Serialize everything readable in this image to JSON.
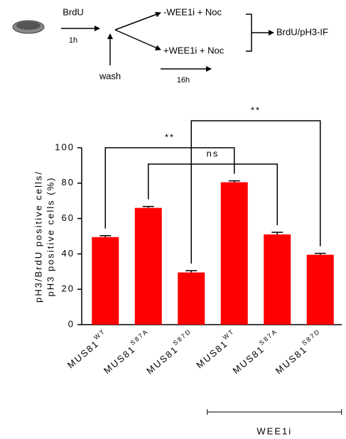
{
  "diagram": {
    "pulse": "BrdU",
    "pulse_time": "1h",
    "wash": "wash",
    "branch_minus": "-WEE1i + Noc",
    "branch_plus": "+WEE1i + Noc",
    "readout": "BrdU/pH3-IF",
    "chase_time": "16h"
  },
  "chart_data": {
    "type": "bar",
    "ylabel": [
      "pH3/BrdU positive cells/",
      "pH3 positive cells (%)"
    ],
    "categories": [
      {
        "name": "MUS81",
        "sup": "WT"
      },
      {
        "name": "MUS81",
        "sup": "S87A"
      },
      {
        "name": "MUS81",
        "sup": "S87D"
      },
      {
        "name": "MUS81",
        "sup": "WT"
      },
      {
        "name": "MUS81",
        "sup": "S87A"
      },
      {
        "name": "MUS81",
        "sup": "S87D"
      }
    ],
    "values": [
      49.5,
      66,
      29.5,
      80.5,
      51,
      39.5
    ],
    "errors": [
      0.8,
      0.8,
      1,
      0.8,
      1.2,
      0.8
    ],
    "color": "#ff0000",
    "ylim": [
      0,
      100
    ],
    "yticks": [
      0,
      20,
      40,
      60,
      80,
      100
    ],
    "annotations": [
      {
        "from": 0,
        "to": 3,
        "label": "**"
      },
      {
        "from": 1,
        "to": 4,
        "label": "ns"
      },
      {
        "from": 2,
        "to": 5,
        "label": "**"
      }
    ],
    "group": {
      "label": "WEE1i",
      "from": 3,
      "to": 5
    }
  }
}
